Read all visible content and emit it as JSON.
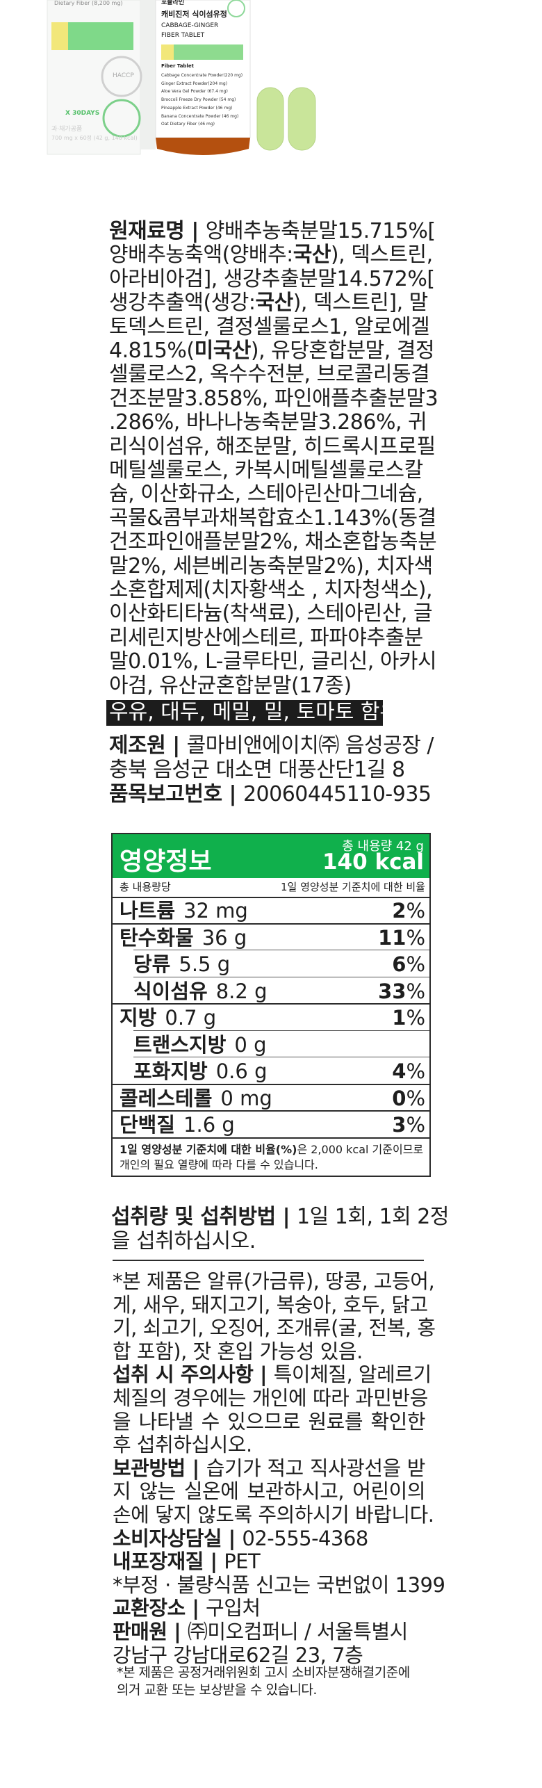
{
  "product_photo": {
    "box_text": "Dietary Fiber (8,200 mg)",
    "box_days": "X 30DAYS",
    "box_type": "과·채가공품",
    "box_qty": "700 mg x 60정 (42 g, 140 kcal)",
    "box_badge": "HACCP",
    "bottle_brand": "포뮬라인",
    "bottle_title_ko": "캐비진저 식이섬유정",
    "bottle_title_en_1": "CABBAGE-GINGER",
    "bottle_title_en_2": "FIBER TABLET",
    "bottle_sub": "Fiber Tablet",
    "bottle_items": [
      "Cabbage Concentrate Powder(220 mg)",
      "Ginger Extract Powder(204 mg)",
      "Aloe Vera Gel Powder (67.4 mg)",
      "Broccoli Freeze Dry Powder (54 mg)",
      "Pineapple Extract Powder (46 mg)",
      "Banana Concentrate Powder (46 mg)",
      "Oat Dietary Fiber (46 mg)"
    ],
    "colors": {
      "green": "#3cc35a",
      "pill": "#c9e59a",
      "amber": "#b4500f"
    }
  },
  "ingredients": {
    "lines": [
      [
        {
          "b": "원재료명 | "
        },
        {
          "t": "양배추농축분말15.715%["
        }
      ],
      [
        {
          "t": "양배추농축액(양배추:"
        },
        {
          "b": "국산"
        },
        {
          "t": "), 덱스트린,"
        }
      ],
      [
        {
          "t": "아라비아검], 생강추출분말14.572%["
        }
      ],
      [
        {
          "t": "생강추출액(생강:"
        },
        {
          "b": "국산"
        },
        {
          "t": "), 덱스트린], 말"
        }
      ],
      [
        {
          "t": "토덱스트린, 결정셀룰로스1, 알로에겔"
        }
      ],
      [
        {
          "t": "4.815%("
        },
        {
          "b": "미국산"
        },
        {
          "t": "), 유당혼합분말, 결정"
        }
      ],
      [
        {
          "t": "셀룰로스2, 옥수수전분, 브로콜리동결"
        }
      ],
      [
        {
          "t": "건조분말3.858%, 파인애플추출분말3"
        }
      ],
      [
        {
          "t": ".286%, 바나나농축분말3.286%, 귀"
        }
      ],
      [
        {
          "t": "리식이섬유, 해조분말, 히드록시프로필"
        }
      ],
      [
        {
          "t": "메틸셀룰로스, 카복시메틸셀룰로스칼"
        }
      ],
      [
        {
          "t": "슘, 이산화규소, 스테아린산마그네슘,"
        }
      ],
      [
        {
          "t": "곡물&콤부과채복합효소1.143%(동결"
        }
      ],
      [
        {
          "t": "건조파인애플분말2%, 채소혼합농축분"
        }
      ],
      [
        {
          "t": "말2%, 세븐베리농축분말2%), 치자색"
        }
      ],
      [
        {
          "t": "소혼합제제(치자황색소 , 치자청색소),"
        }
      ],
      [
        {
          "t": "이산화티타늄(착색료), 스테아린산, 글"
        }
      ],
      [
        {
          "t": "리세린지방산에스테르, 파파야추출분"
        }
      ],
      [
        {
          "t": "말0.01%, L-글루타민, 글리신, 아카시"
        }
      ],
      [
        {
          "t": "아검, 유산균혼합분말(17종)"
        }
      ]
    ],
    "allergy": "우유, 대두, 메밀, 밀, 토마토 함유",
    "maker_lines": [
      [
        {
          "b": "제조원 | "
        },
        {
          "t": "콜마비앤에이치㈜ 음성공장 /"
        }
      ],
      [
        {
          "t": "충북 음성군 대소면 대풍산단1길 8"
        }
      ],
      [
        {
          "b": "품목보고번호 | "
        },
        {
          "t": "20060445110-935"
        }
      ]
    ]
  },
  "nutrition": {
    "title": "영양정보",
    "total": "총 내용량 42 g",
    "kcal": "140 kcal",
    "per": "총 내용량당",
    "ratio_header": "1일 영양성분 기준치에 대한 비율",
    "rows": [
      {
        "label": "나트륨",
        "value": "32 mg",
        "pct": "2",
        "indent": false
      },
      {
        "label": "탄수화물",
        "value": "36 g",
        "pct": "11",
        "indent": false
      },
      {
        "label": "당류",
        "value": "5.5 g",
        "pct": "6",
        "indent": true
      },
      {
        "label": "식이섬유",
        "value": "8.2 g",
        "pct": "33",
        "indent": true
      },
      {
        "label": "지방",
        "value": "0.7 g",
        "pct": "1",
        "indent": false
      },
      {
        "label": "트랜스지방",
        "value": "0 g",
        "pct": "",
        "indent": true
      },
      {
        "label": "포화지방",
        "value": "0.6 g",
        "pct": "4",
        "indent": true
      },
      {
        "label": "콜레스테롤",
        "value": "0 mg",
        "pct": "0",
        "indent": false
      },
      {
        "label": "단백질",
        "value": "1.6 g",
        "pct": "3",
        "indent": false
      }
    ],
    "foot_bold": "1일 영양성분 기준치에 대한 비율(%)",
    "foot_rest": "은 2,000 kcal 기준이므로",
    "foot_line2": "개인의 필요 열량에 따라 다를 수 있습니다.",
    "color": "#10b04c"
  },
  "intake": {
    "lines": [
      [
        {
          "b": "섭취량 및 섭취방법 | "
        },
        {
          "t": "1일 1회, 1회 2정"
        }
      ],
      [
        {
          "t": "을 섭취하십시오."
        }
      ]
    ]
  },
  "notices": {
    "lines": [
      {
        "j": true,
        "s": [
          {
            "t": "*본 제품은 알류(가금류), 땅콩, 고등어,"
          }
        ]
      },
      {
        "j": true,
        "s": [
          {
            "t": "게, 새우, 돼지고기, 복숭아, 호두, 닭고"
          }
        ]
      },
      {
        "j": true,
        "s": [
          {
            "t": "기, 쇠고기, 오징어, 조개류(굴, 전복, 홍"
          }
        ]
      },
      {
        "j": false,
        "s": [
          {
            "t": "합 포함), 잣 혼입 가능성 있음."
          }
        ]
      },
      {
        "j": true,
        "s": [
          {
            "b": "섭취 시 주의사항 | "
          },
          {
            "t": "특이체질, 알레르기"
          }
        ]
      },
      {
        "j": true,
        "s": [
          {
            "t": "체질의 경우에는 개인에 따라 과민반응"
          }
        ]
      },
      {
        "j": true,
        "s": [
          {
            "t": "을 나타낼 수 있으므로 원료를 확인한"
          }
        ]
      },
      {
        "j": false,
        "s": [
          {
            "t": "후 섭취하십시오."
          }
        ]
      },
      {
        "j": true,
        "s": [
          {
            "b": "보관방법 | "
          },
          {
            "t": "습기가 적고 직사광선을 받"
          }
        ]
      },
      {
        "j": true,
        "s": [
          {
            "t": "지 않는 실온에 보관하시고, 어린이의"
          }
        ]
      },
      {
        "j": true,
        "s": [
          {
            "t": "손에 닿지 않도록 주의하시기 바랍니다."
          }
        ]
      },
      {
        "j": false,
        "s": [
          {
            "b": "소비자상담실 | "
          },
          {
            "t": "02-555-4368"
          }
        ]
      },
      {
        "j": false,
        "s": [
          {
            "b": "내포장재질 | "
          },
          {
            "t": "PET"
          }
        ]
      },
      {
        "j": false,
        "s": [
          {
            "t": "*부정 · 불량식품 신고는 국번없이 1399"
          }
        ]
      },
      {
        "j": false,
        "s": [
          {
            "b": "교환장소 | "
          },
          {
            "t": "구입처"
          }
        ]
      },
      {
        "j": false,
        "s": [
          {
            "b": "판매원 | "
          },
          {
            "t": "㈜미오컴퍼니 / 서울특별시"
          }
        ]
      },
      {
        "j": false,
        "s": [
          {
            "t": "강남구 강남대로62길 23, 7층"
          }
        ]
      }
    ],
    "small": [
      "*본 제품은 공정거래위원회 고시 소비자분쟁해결기준에",
      "의거 교환 또는 보상받을 수 있습니다."
    ]
  }
}
